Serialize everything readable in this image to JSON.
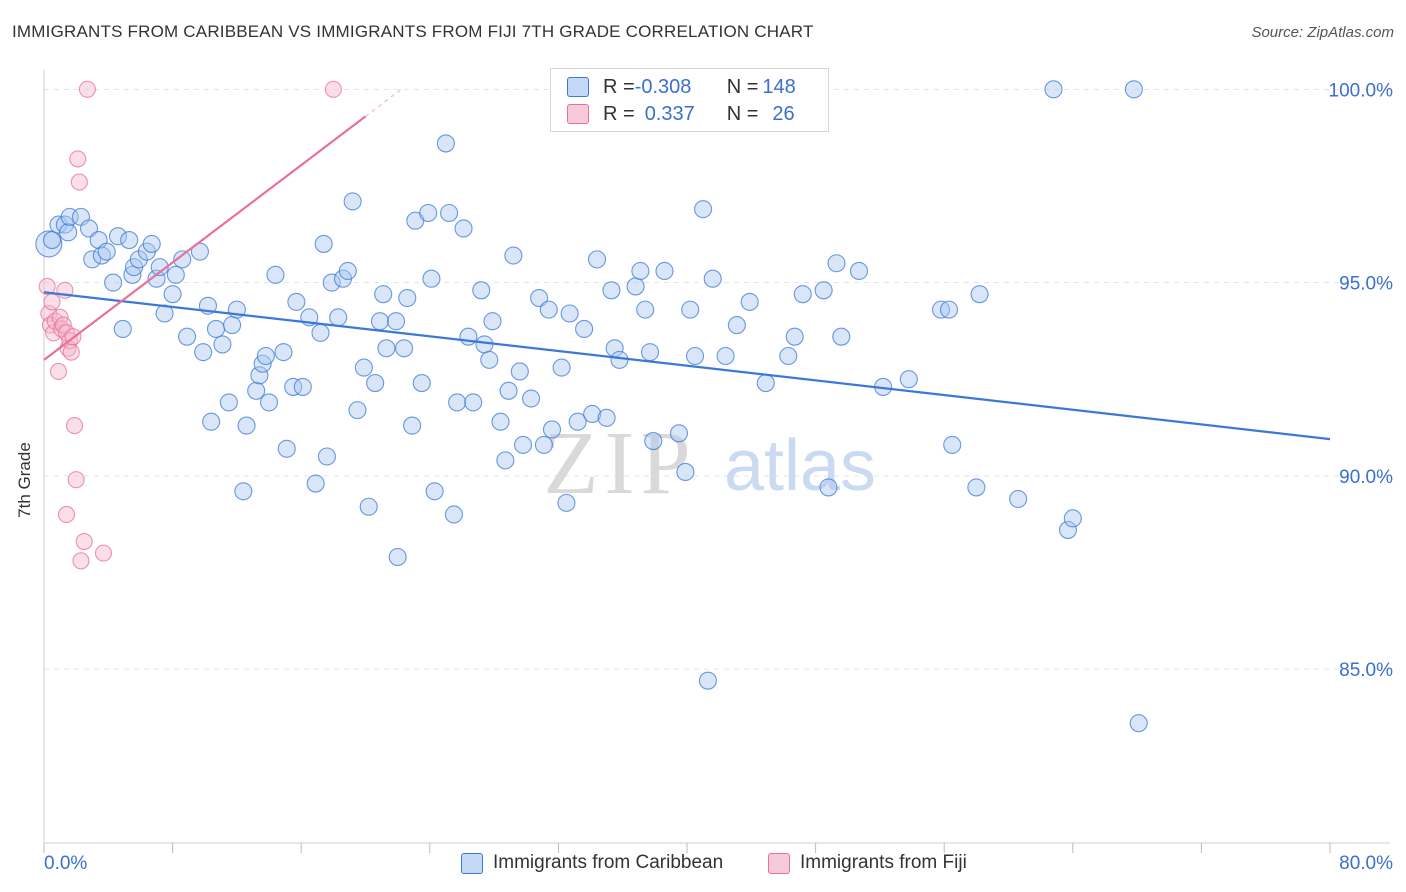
{
  "title": "IMMIGRANTS FROM CARIBBEAN VS IMMIGRANTS FROM FIJI 7TH GRADE CORRELATION CHART",
  "source": "Source: ZipAtlas.com",
  "watermark": {
    "zip": "ZIP",
    "atlas": "atlas"
  },
  "colors": {
    "blue": "#3b78d8",
    "blue_fill": "#a9c8f0",
    "pink": "#e8709a",
    "pink_fill": "#f5b8cb",
    "tick_text": "#3b6fd0"
  },
  "legend": {
    "rows": [
      {
        "r_label": "R = ",
        "r_value": "-0.308",
        "n_label": "N = ",
        "n_value": "148"
      },
      {
        "r_label": "R = ",
        "r_value": "0.337",
        "n_label": "N = ",
        "n_value": "26"
      }
    ]
  },
  "chart_data": {
    "type": "scatter",
    "title": "IMMIGRANTS FROM CARIBBEAN VS IMMIGRANTS FROM FIJI 7TH GRADE CORRELATION CHART",
    "xlabel": "",
    "ylabel": "7th Grade",
    "xlim": [
      0,
      80
    ],
    "ylim": [
      80.5,
      100.5
    ],
    "x_tick_labels": [
      "0.0%",
      "80.0%"
    ],
    "y_ticks": [
      85,
      90,
      95,
      100
    ],
    "y_tick_labels": [
      "85.0%",
      "90.0%",
      "95.0%",
      "100.0%"
    ],
    "series": [
      {
        "name": "Immigrants from Caribbean",
        "trend": {
          "x": [
            0,
            80
          ],
          "y": [
            94.75,
            90.95
          ]
        },
        "points": [
          [
            0.3,
            96.0
          ],
          [
            0.5,
            96.1
          ],
          [
            0.9,
            96.5
          ],
          [
            1.3,
            96.5
          ],
          [
            1.5,
            96.3
          ],
          [
            1.6,
            96.7
          ],
          [
            2.3,
            96.7
          ],
          [
            2.8,
            96.4
          ],
          [
            3.0,
            95.6
          ],
          [
            3.4,
            96.1
          ],
          [
            3.6,
            95.7
          ],
          [
            3.9,
            95.8
          ],
          [
            4.3,
            95.0
          ],
          [
            4.6,
            96.2
          ],
          [
            5.3,
            96.1
          ],
          [
            5.5,
            95.2
          ],
          [
            5.6,
            95.4
          ],
          [
            5.9,
            95.6
          ],
          [
            6.4,
            95.8
          ],
          [
            6.7,
            96.0
          ],
          [
            7.0,
            95.1
          ],
          [
            7.2,
            95.4
          ],
          [
            7.5,
            94.2
          ],
          [
            8.0,
            94.7
          ],
          [
            8.2,
            95.2
          ],
          [
            8.6,
            95.6
          ],
          [
            9.7,
            95.8
          ],
          [
            4.9,
            93.8
          ],
          [
            8.9,
            93.6
          ],
          [
            9.9,
            93.2
          ],
          [
            10.2,
            94.4
          ],
          [
            10.4,
            91.4
          ],
          [
            10.7,
            93.8
          ],
          [
            11.1,
            93.4
          ],
          [
            11.5,
            91.9
          ],
          [
            11.7,
            93.9
          ],
          [
            12.0,
            94.3
          ],
          [
            12.4,
            89.6
          ],
          [
            12.6,
            91.3
          ],
          [
            13.2,
            92.2
          ],
          [
            13.4,
            92.6
          ],
          [
            13.6,
            92.9
          ],
          [
            13.8,
            93.1
          ],
          [
            14.0,
            91.9
          ],
          [
            14.4,
            95.2
          ],
          [
            14.9,
            93.2
          ],
          [
            15.1,
            90.7
          ],
          [
            15.5,
            92.3
          ],
          [
            15.7,
            94.5
          ],
          [
            16.1,
            92.3
          ],
          [
            16.5,
            94.1
          ],
          [
            16.9,
            89.8
          ],
          [
            17.2,
            93.7
          ],
          [
            17.4,
            96.0
          ],
          [
            17.6,
            90.5
          ],
          [
            17.9,
            95.0
          ],
          [
            18.3,
            94.1
          ],
          [
            18.6,
            95.1
          ],
          [
            18.9,
            95.3
          ],
          [
            19.2,
            97.1
          ],
          [
            19.5,
            91.7
          ],
          [
            19.9,
            92.8
          ],
          [
            20.2,
            89.2
          ],
          [
            20.6,
            92.4
          ],
          [
            20.9,
            94.0
          ],
          [
            21.1,
            94.7
          ],
          [
            21.3,
            93.3
          ],
          [
            21.9,
            94.0
          ],
          [
            22.0,
            87.9
          ],
          [
            22.4,
            93.3
          ],
          [
            22.6,
            94.6
          ],
          [
            22.9,
            91.3
          ],
          [
            23.1,
            96.6
          ],
          [
            23.5,
            92.4
          ],
          [
            23.9,
            96.8
          ],
          [
            24.1,
            95.1
          ],
          [
            24.3,
            89.6
          ],
          [
            25.0,
            98.6
          ],
          [
            25.2,
            96.8
          ],
          [
            25.5,
            89.0
          ],
          [
            25.7,
            91.9
          ],
          [
            26.1,
            96.4
          ],
          [
            26.4,
            93.6
          ],
          [
            26.7,
            91.9
          ],
          [
            27.2,
            94.8
          ],
          [
            27.4,
            93.4
          ],
          [
            27.7,
            93.0
          ],
          [
            27.9,
            94.0
          ],
          [
            28.4,
            91.4
          ],
          [
            28.7,
            90.4
          ],
          [
            28.9,
            92.2
          ],
          [
            29.2,
            95.7
          ],
          [
            29.6,
            92.7
          ],
          [
            29.8,
            90.8
          ],
          [
            30.3,
            92.0
          ],
          [
            30.8,
            94.6
          ],
          [
            31.1,
            90.8
          ],
          [
            31.4,
            94.3
          ],
          [
            31.6,
            91.2
          ],
          [
            32.2,
            92.8
          ],
          [
            32.5,
            89.3
          ],
          [
            32.7,
            94.2
          ],
          [
            33.2,
            91.4
          ],
          [
            33.6,
            93.8
          ],
          [
            34.1,
            91.6
          ],
          [
            34.4,
            95.6
          ],
          [
            35.0,
            91.5
          ],
          [
            35.3,
            94.8
          ],
          [
            35.5,
            93.3
          ],
          [
            35.8,
            93.0
          ],
          [
            36.8,
            94.9
          ],
          [
            37.1,
            95.3
          ],
          [
            37.4,
            94.3
          ],
          [
            37.7,
            93.2
          ],
          [
            37.9,
            90.9
          ],
          [
            38.6,
            95.3
          ],
          [
            39.5,
            91.1
          ],
          [
            39.9,
            90.1
          ],
          [
            40.2,
            94.3
          ],
          [
            40.5,
            93.1
          ],
          [
            41.0,
            96.9
          ],
          [
            41.3,
            84.7
          ],
          [
            41.6,
            95.1
          ],
          [
            42.4,
            93.1
          ],
          [
            43.1,
            93.9
          ],
          [
            43.9,
            94.5
          ],
          [
            44.9,
            92.4
          ],
          [
            46.3,
            93.1
          ],
          [
            46.7,
            93.6
          ],
          [
            47.2,
            94.7
          ],
          [
            48.5,
            94.8
          ],
          [
            48.8,
            89.7
          ],
          [
            49.3,
            95.5
          ],
          [
            49.6,
            93.6
          ],
          [
            50.7,
            95.3
          ],
          [
            52.2,
            92.3
          ],
          [
            53.8,
            92.5
          ],
          [
            55.8,
            94.3
          ],
          [
            56.3,
            94.3
          ],
          [
            56.5,
            90.8
          ],
          [
            58.2,
            94.7
          ],
          [
            60.6,
            89.4
          ],
          [
            62.8,
            100.0
          ],
          [
            63.7,
            88.6
          ],
          [
            64.0,
            88.9
          ],
          [
            67.8,
            100.0
          ],
          [
            68.1,
            83.6
          ],
          [
            58.0,
            89.7
          ]
        ]
      },
      {
        "name": "Immigrants from Fiji",
        "trend": {
          "x": [
            0,
            20
          ],
          "y": [
            93.0,
            99.3
          ]
        },
        "points": [
          [
            0.2,
            94.9
          ],
          [
            0.3,
            94.2
          ],
          [
            0.4,
            93.9
          ],
          [
            0.5,
            94.5
          ],
          [
            0.6,
            93.7
          ],
          [
            0.7,
            94.0
          ],
          [
            0.9,
            92.7
          ],
          [
            1.0,
            94.1
          ],
          [
            1.1,
            93.8
          ],
          [
            1.2,
            93.9
          ],
          [
            1.3,
            94.8
          ],
          [
            1.4,
            93.7
          ],
          [
            1.5,
            93.3
          ],
          [
            1.6,
            93.5
          ],
          [
            1.7,
            93.2
          ],
          [
            1.8,
            93.6
          ],
          [
            1.9,
            91.3
          ],
          [
            2.0,
            89.9
          ],
          [
            2.1,
            98.2
          ],
          [
            2.2,
            97.6
          ],
          [
            1.4,
            89.0
          ],
          [
            2.3,
            87.8
          ],
          [
            2.5,
            88.3
          ],
          [
            2.7,
            100.0
          ],
          [
            3.7,
            88.0
          ],
          [
            18.0,
            100.0
          ]
        ]
      }
    ]
  },
  "bottom_legend": [
    "Immigrants from Caribbean",
    "Immigrants from Fiji"
  ]
}
